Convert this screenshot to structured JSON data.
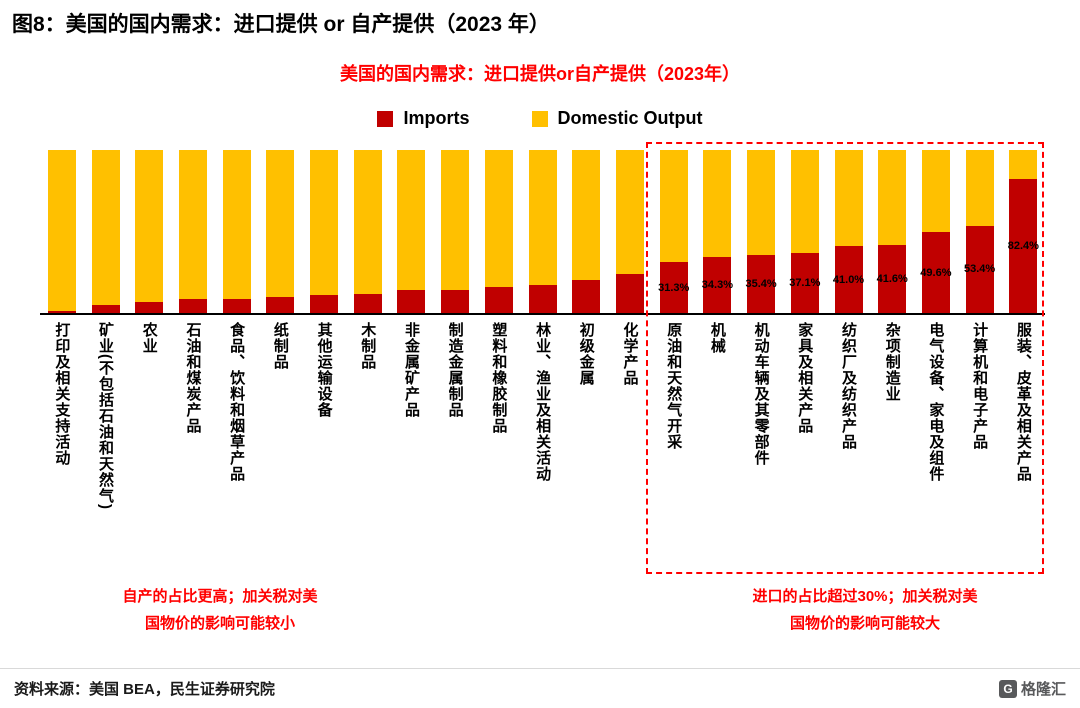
{
  "page": {
    "header_title": "图8：美国的国内需求：进口提供 or 自产提供（2023 年）",
    "source_text": "资料来源：美国 BEA，民生证券研究院",
    "logo_icon": "G",
    "logo_text": "格隆汇"
  },
  "chart_data": {
    "type": "bar",
    "stacked": true,
    "normalized_to_100": true,
    "title": "美国的国内需求：进口提供or自产提供（2023年）",
    "legend_position": "top",
    "grid": false,
    "ylim": [
      0,
      100
    ],
    "categories": [
      "打印及相关支持活动",
      "矿业(不包括石油和天然气)",
      "农业",
      "石油和煤炭产品",
      "食品、饮料和烟草产品",
      "纸制品",
      "其他运输设备",
      "木制品",
      "非金属矿产品",
      "制造金属制品",
      "塑料和橡胶制品",
      "林业、渔业及相关活动",
      "初级金属",
      "化学产品",
      "原油和天然气开采",
      "机械",
      "机动车辆及其零部件",
      "家具及相关产品",
      "纺织厂及纺织产品",
      "杂项制造业",
      "电气设备、家电及组件",
      "计算机和电子产品",
      "服装、皮革及相关产品"
    ],
    "series": [
      {
        "name": "Imports",
        "color": "#C00000",
        "values": [
          1.5,
          5,
          7,
          8.5,
          8.5,
          10,
          11,
          11.5,
          14,
          14,
          16,
          17,
          20,
          24,
          31.3,
          34.3,
          35.4,
          37.1,
          41.0,
          41.6,
          49.6,
          53.4,
          82.4
        ]
      },
      {
        "name": "Domestic Output",
        "color": "#FFC000",
        "values": [
          98.5,
          95,
          93,
          91.5,
          91.5,
          90,
          89,
          88.5,
          86,
          86,
          84,
          83,
          80,
          76,
          68.7,
          65.7,
          64.6,
          62.9,
          59.0,
          58.4,
          50.4,
          46.6,
          17.6
        ]
      }
    ],
    "bar_labels": [
      "",
      "",
      "",
      "",
      "",
      "",
      "",
      "",
      "",
      "",
      "",
      "",
      "",
      "",
      "31.3%",
      "34.3%",
      "35.4%",
      "37.1%",
      "41.0%",
      "41.6%",
      "49.6%",
      "53.4%",
      "82.4%"
    ],
    "highlight_box": {
      "start_category": "原油和天然气开采",
      "end_category": "服装、皮革及相关产品",
      "border_color": "#FF0000"
    },
    "annotations": {
      "left": "自产的占比更高；加关税对美\n国物价的影响可能较小",
      "right": "进口的占比超过30%；加关税对美\n国物价的影响可能较大"
    }
  }
}
